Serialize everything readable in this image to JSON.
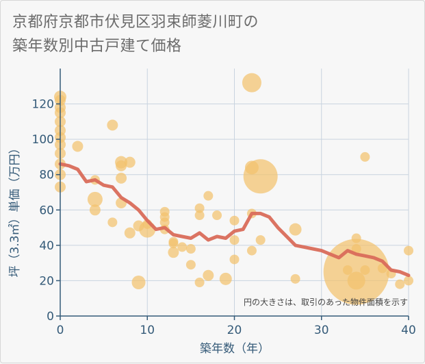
{
  "title_lines": [
    "京都府京都市伏見区羽束師菱川町の",
    "築年数別中古戸建て価格"
  ],
  "chart_data": {
    "type": "scatter",
    "xlabel": "築年数（年）",
    "ylabel": "坪（3.3㎡）単価（万円）",
    "xlim": [
      0,
      40
    ],
    "ylim": [
      0,
      140
    ],
    "x_ticks": [
      0,
      10,
      20,
      30,
      40
    ],
    "y_ticks": [
      0,
      20,
      40,
      60,
      80,
      100,
      120
    ],
    "grid": true,
    "note": "円の大きさは、取引のあった物件面積を示す",
    "colors": {
      "bubble": "#f3c26e",
      "line": "#d96b5a",
      "grid": "#c8d3df",
      "axis": "#345a78"
    },
    "points": [
      {
        "x": 0,
        "y": 124,
        "r": 9
      },
      {
        "x": 0,
        "y": 122,
        "r": 8
      },
      {
        "x": 0,
        "y": 118,
        "r": 8
      },
      {
        "x": 0,
        "y": 115,
        "r": 8
      },
      {
        "x": 0,
        "y": 110,
        "r": 8
      },
      {
        "x": 0,
        "y": 105,
        "r": 8
      },
      {
        "x": 0,
        "y": 101,
        "r": 8
      },
      {
        "x": 0,
        "y": 97,
        "r": 8
      },
      {
        "x": 0,
        "y": 92,
        "r": 8
      },
      {
        "x": 0,
        "y": 86,
        "r": 8
      },
      {
        "x": 0,
        "y": 80,
        "r": 8
      },
      {
        "x": 0,
        "y": 73,
        "r": 8
      },
      {
        "x": 2,
        "y": 96,
        "r": 8
      },
      {
        "x": 4,
        "y": 77,
        "r": 7
      },
      {
        "x": 4,
        "y": 66,
        "r": 11
      },
      {
        "x": 4,
        "y": 60,
        "r": 8
      },
      {
        "x": 6,
        "y": 108,
        "r": 8
      },
      {
        "x": 6,
        "y": 53,
        "r": 7
      },
      {
        "x": 7,
        "y": 87,
        "r": 9
      },
      {
        "x": 7,
        "y": 85,
        "r": 8
      },
      {
        "x": 7,
        "y": 78,
        "r": 8
      },
      {
        "x": 7,
        "y": 64,
        "r": 8
      },
      {
        "x": 8,
        "y": 87,
        "r": 8
      },
      {
        "x": 8,
        "y": 47,
        "r": 8
      },
      {
        "x": 9,
        "y": 51,
        "r": 8
      },
      {
        "x": 9,
        "y": 19,
        "r": 10
      },
      {
        "x": 10,
        "y": 49,
        "r": 12
      },
      {
        "x": 10,
        "y": 52,
        "r": 7
      },
      {
        "x": 12,
        "y": 59,
        "r": 7
      },
      {
        "x": 12,
        "y": 56,
        "r": 7
      },
      {
        "x": 12,
        "y": 53,
        "r": 7
      },
      {
        "x": 12,
        "y": 49,
        "r": 7
      },
      {
        "x": 13,
        "y": 42,
        "r": 7
      },
      {
        "x": 13,
        "y": 41,
        "r": 7
      },
      {
        "x": 13,
        "y": 36,
        "r": 8
      },
      {
        "x": 14,
        "y": 39,
        "r": 7
      },
      {
        "x": 15,
        "y": 38,
        "r": 7
      },
      {
        "x": 15,
        "y": 29,
        "r": 7
      },
      {
        "x": 16,
        "y": 61,
        "r": 7
      },
      {
        "x": 16,
        "y": 57,
        "r": 7
      },
      {
        "x": 16,
        "y": 19,
        "r": 7
      },
      {
        "x": 17,
        "y": 68,
        "r": 7
      },
      {
        "x": 17,
        "y": 23,
        "r": 8
      },
      {
        "x": 18,
        "y": 57,
        "r": 7
      },
      {
        "x": 19,
        "y": 21,
        "r": 9
      },
      {
        "x": 20,
        "y": 54,
        "r": 7
      },
      {
        "x": 20,
        "y": 43,
        "r": 7
      },
      {
        "x": 20,
        "y": 32,
        "r": 7
      },
      {
        "x": 22,
        "y": 132,
        "r": 14
      },
      {
        "x": 22,
        "y": 84,
        "r": 10
      },
      {
        "x": 22,
        "y": 58,
        "r": 7
      },
      {
        "x": 22,
        "y": 37,
        "r": 7
      },
      {
        "x": 23,
        "y": 79,
        "r": 25
      },
      {
        "x": 23,
        "y": 43,
        "r": 7
      },
      {
        "x": 27,
        "y": 49,
        "r": 9
      },
      {
        "x": 27,
        "y": 21,
        "r": 7
      },
      {
        "x": 33,
        "y": 26,
        "r": 7
      },
      {
        "x": 34,
        "y": 44,
        "r": 7
      },
      {
        "x": 34,
        "y": 38,
        "r": 7
      },
      {
        "x": 34,
        "y": 25,
        "r": 48
      },
      {
        "x": 34,
        "y": 20,
        "r": 13
      },
      {
        "x": 35,
        "y": 90,
        "r": 7
      },
      {
        "x": 35,
        "y": 26,
        "r": 7
      },
      {
        "x": 37,
        "y": 27,
        "r": 7
      },
      {
        "x": 38,
        "y": 24,
        "r": 7
      },
      {
        "x": 39,
        "y": 18,
        "r": 7
      },
      {
        "x": 40,
        "y": 37,
        "r": 7
      },
      {
        "x": 40,
        "y": 20,
        "r": 7
      }
    ],
    "trend": {
      "x": [
        0,
        1,
        2,
        3,
        4,
        5,
        6,
        7,
        8,
        9,
        10,
        11,
        12,
        13,
        14,
        15,
        16,
        17,
        18,
        19,
        20,
        21,
        22,
        23,
        24,
        25,
        26,
        27,
        28,
        29,
        30,
        31,
        32,
        33,
        34,
        35,
        36,
        37,
        38,
        39,
        40
      ],
      "y": [
        86,
        85,
        83,
        76,
        77,
        74,
        73,
        67,
        64,
        60,
        54,
        49,
        50,
        46,
        45,
        44,
        47,
        43,
        45,
        44,
        48,
        49,
        58,
        58,
        56,
        50,
        45,
        40,
        39,
        38,
        37,
        35,
        33,
        37,
        35,
        34,
        33,
        31,
        26,
        25,
        23
      ]
    }
  }
}
